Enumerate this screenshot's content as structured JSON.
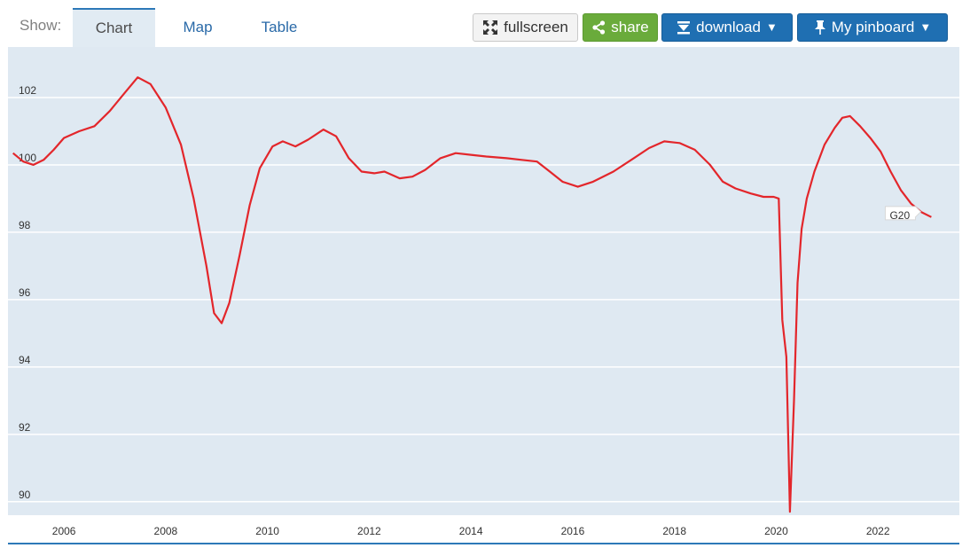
{
  "toolbar": {
    "show_label": "Show:",
    "tabs": [
      {
        "label": "Chart",
        "active": true
      },
      {
        "label": "Map",
        "active": false
      },
      {
        "label": "Table",
        "active": false
      }
    ],
    "fullscreen_label": "fullscreen",
    "share_label": "share",
    "download_label": "download",
    "pinboard_label": "My pinboard",
    "caret": "▼",
    "icons": [
      "fullscreen-icon",
      "share-icon",
      "download-icon",
      "pin-icon"
    ]
  },
  "colors": {
    "line": "#e3262b",
    "plot_bg": "#dfe9f2",
    "grid": "#ffffff",
    "tab_active_bg": "#e1ebf3",
    "primary_button": "#1f6fb2",
    "share_button": "#6aab3b"
  },
  "chart_data": {
    "type": "line",
    "title": "",
    "xlabel": "",
    "ylabel": "",
    "xlim": [
      2004.9,
      2023.6
    ],
    "ylim": [
      89.6,
      103.5
    ],
    "grid": true,
    "legend": "none",
    "x_ticks": [
      2006,
      2008,
      2010,
      2012,
      2014,
      2016,
      2018,
      2020,
      2022
    ],
    "y_ticks": [
      90,
      92,
      94,
      96,
      98,
      100,
      102
    ],
    "series": [
      {
        "name": "G20",
        "color": "#e3262b",
        "points": [
          [
            2005.0,
            100.35
          ],
          [
            2005.2,
            100.1
          ],
          [
            2005.4,
            100.0
          ],
          [
            2005.6,
            100.15
          ],
          [
            2005.8,
            100.45
          ],
          [
            2006.0,
            100.8
          ],
          [
            2006.3,
            101.0
          ],
          [
            2006.6,
            101.15
          ],
          [
            2006.9,
            101.6
          ],
          [
            2007.2,
            102.15
          ],
          [
            2007.45,
            102.6
          ],
          [
            2007.7,
            102.4
          ],
          [
            2008.0,
            101.7
          ],
          [
            2008.3,
            100.6
          ],
          [
            2008.55,
            99.0
          ],
          [
            2008.8,
            97.0
          ],
          [
            2008.95,
            95.6
          ],
          [
            2009.1,
            95.3
          ],
          [
            2009.25,
            95.9
          ],
          [
            2009.45,
            97.3
          ],
          [
            2009.65,
            98.8
          ],
          [
            2009.85,
            99.9
          ],
          [
            2010.1,
            100.55
          ],
          [
            2010.3,
            100.7
          ],
          [
            2010.55,
            100.55
          ],
          [
            2010.8,
            100.75
          ],
          [
            2011.1,
            101.05
          ],
          [
            2011.35,
            100.85
          ],
          [
            2011.6,
            100.2
          ],
          [
            2011.85,
            99.8
          ],
          [
            2012.1,
            99.75
          ],
          [
            2012.3,
            99.8
          ],
          [
            2012.6,
            99.6
          ],
          [
            2012.85,
            99.65
          ],
          [
            2013.1,
            99.85
          ],
          [
            2013.4,
            100.2
          ],
          [
            2013.7,
            100.35
          ],
          [
            2014.0,
            100.3
          ],
          [
            2014.3,
            100.25
          ],
          [
            2014.7,
            100.2
          ],
          [
            2015.0,
            100.15
          ],
          [
            2015.3,
            100.1
          ],
          [
            2015.55,
            99.8
          ],
          [
            2015.8,
            99.5
          ],
          [
            2016.1,
            99.35
          ],
          [
            2016.4,
            99.5
          ],
          [
            2016.8,
            99.8
          ],
          [
            2017.2,
            100.2
          ],
          [
            2017.5,
            100.5
          ],
          [
            2017.8,
            100.7
          ],
          [
            2018.1,
            100.65
          ],
          [
            2018.4,
            100.45
          ],
          [
            2018.7,
            100.0
          ],
          [
            2018.95,
            99.5
          ],
          [
            2019.2,
            99.3
          ],
          [
            2019.5,
            99.15
          ],
          [
            2019.75,
            99.05
          ],
          [
            2019.95,
            99.05
          ],
          [
            2020.05,
            99.0
          ],
          [
            2020.12,
            95.4
          ],
          [
            2020.2,
            94.3
          ],
          [
            2020.27,
            89.7
          ],
          [
            2020.35,
            93.0
          ],
          [
            2020.42,
            96.5
          ],
          [
            2020.5,
            98.1
          ],
          [
            2020.6,
            99.0
          ],
          [
            2020.75,
            99.8
          ],
          [
            2020.95,
            100.6
          ],
          [
            2021.15,
            101.1
          ],
          [
            2021.3,
            101.4
          ],
          [
            2021.45,
            101.45
          ],
          [
            2021.65,
            101.15
          ],
          [
            2021.85,
            100.8
          ],
          [
            2022.05,
            100.4
          ],
          [
            2022.25,
            99.8
          ],
          [
            2022.45,
            99.25
          ],
          [
            2022.65,
            98.85
          ],
          [
            2022.85,
            98.6
          ],
          [
            2023.05,
            98.45
          ]
        ]
      }
    ]
  }
}
